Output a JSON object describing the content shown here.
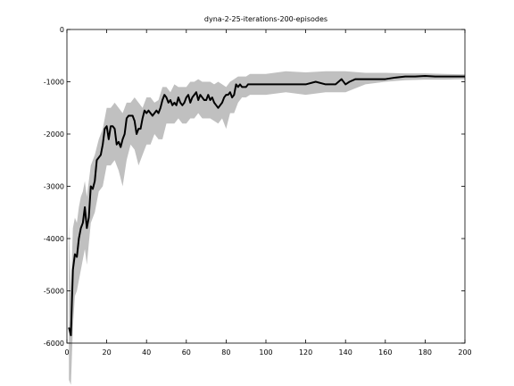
{
  "chart_data": {
    "type": "line",
    "title": "dyna-2-25-iterations-200-episodes",
    "xlabel": "",
    "ylabel": "",
    "xlim": [
      0,
      200
    ],
    "ylim": [
      -6000,
      0
    ],
    "xticks": [
      0,
      20,
      40,
      60,
      80,
      100,
      120,
      140,
      160,
      180,
      200
    ],
    "yticks": [
      0,
      -1000,
      -2000,
      -3000,
      -4000,
      -5000,
      -6000
    ],
    "xtick_labels": [
      "0",
      "20",
      "40",
      "60",
      "80",
      "100",
      "120",
      "140",
      "160",
      "180",
      "200"
    ],
    "ytick_labels": [
      "0",
      "-1000",
      "-2000",
      "-3000",
      "-4000",
      "-5000",
      "-6000"
    ],
    "grid": false,
    "series": [
      {
        "name": "",
        "color": "#000000",
        "x": [
          1,
          2,
          3,
          4,
          5,
          6,
          7,
          8,
          9,
          10,
          11,
          12,
          13,
          14,
          15,
          16,
          17,
          18,
          19,
          20,
          21,
          22,
          23,
          24,
          25,
          26,
          27,
          28,
          29,
          30,
          31,
          32,
          33,
          34,
          35,
          36,
          37,
          38,
          39,
          40,
          41,
          42,
          43,
          44,
          45,
          46,
          47,
          48,
          49,
          50,
          51,
          52,
          53,
          54,
          55,
          56,
          57,
          58,
          59,
          60,
          61,
          62,
          63,
          64,
          65,
          66,
          67,
          68,
          69,
          70,
          71,
          72,
          73,
          74,
          75,
          76,
          77,
          78,
          79,
          80,
          81,
          82,
          83,
          84,
          85,
          86,
          87,
          88,
          89,
          90,
          91,
          92,
          95,
          100,
          105,
          110,
          115,
          120,
          125,
          130,
          135,
          138,
          140,
          142,
          145,
          150,
          155,
          160,
          165,
          170,
          175,
          180,
          185,
          190,
          195,
          200
        ],
        "y": [
          -5700,
          -5850,
          -4600,
          -4300,
          -4350,
          -4000,
          -3800,
          -3700,
          -3400,
          -3800,
          -3600,
          -3000,
          -3050,
          -2900,
          -2500,
          -2450,
          -2400,
          -2200,
          -1900,
          -1850,
          -2100,
          -1850,
          -1850,
          -1900,
          -2200,
          -2150,
          -2250,
          -2100,
          -2000,
          -1700,
          -1650,
          -1650,
          -1650,
          -1750,
          -2000,
          -1900,
          -1900,
          -1700,
          -1550,
          -1600,
          -1550,
          -1600,
          -1650,
          -1600,
          -1550,
          -1600,
          -1500,
          -1350,
          -1250,
          -1300,
          -1400,
          -1350,
          -1450,
          -1400,
          -1450,
          -1300,
          -1400,
          -1450,
          -1400,
          -1300,
          -1250,
          -1400,
          -1300,
          -1250,
          -1200,
          -1350,
          -1250,
          -1300,
          -1350,
          -1350,
          -1250,
          -1350,
          -1300,
          -1400,
          -1450,
          -1500,
          -1450,
          -1400,
          -1300,
          -1250,
          -1250,
          -1200,
          -1300,
          -1250,
          -1050,
          -1100,
          -1050,
          -1100,
          -1100,
          -1100,
          -1050,
          -1050,
          -1050,
          -1050,
          -1050,
          -1050,
          -1050,
          -1050,
          -1000,
          -1050,
          -1050,
          -950,
          -1050,
          -1000,
          -950,
          -950,
          -950,
          -950,
          -920,
          -900,
          -900,
          -890,
          -900,
          -900,
          -900,
          -900
        ]
      },
      {
        "name": "",
        "color": "#c0c0c0",
        "fill": "band",
        "x": [
          1,
          2,
          3,
          4,
          5,
          6,
          7,
          8,
          9,
          10,
          12,
          14,
          16,
          18,
          20,
          22,
          24,
          26,
          28,
          30,
          32,
          34,
          36,
          38,
          40,
          42,
          44,
          46,
          48,
          50,
          52,
          54,
          56,
          58,
          60,
          62,
          64,
          66,
          68,
          70,
          72,
          74,
          76,
          78,
          80,
          82,
          84,
          86,
          88,
          90,
          92,
          95,
          100,
          110,
          120,
          130,
          140,
          150,
          160,
          170,
          180,
          190,
          200
        ],
        "upper": [
          -3700,
          -5000,
          -3800,
          -3600,
          -3700,
          -3400,
          -3200,
          -3100,
          -2900,
          -3200,
          -2600,
          -2400,
          -2100,
          -1900,
          -1500,
          -1500,
          -1400,
          -1500,
          -1600,
          -1400,
          -1400,
          -1300,
          -1400,
          -1500,
          -1300,
          -1300,
          -1400,
          -1350,
          -1100,
          -1100,
          -1200,
          -1050,
          -1100,
          -1100,
          -1100,
          -1000,
          -1000,
          -950,
          -1000,
          -1000,
          -1000,
          -1050,
          -1000,
          -1050,
          -1100,
          -1000,
          -950,
          -900,
          -900,
          -900,
          -850,
          -850,
          -850,
          -800,
          -820,
          -800,
          -800,
          -830,
          -830,
          -840,
          -840,
          -850,
          -860
        ],
        "lower": [
          -6700,
          -6800,
          -5700,
          -5100,
          -5000,
          -4800,
          -4600,
          -4400,
          -4200,
          -4500,
          -3700,
          -3500,
          -3100,
          -3000,
          -2600,
          -2600,
          -2500,
          -2700,
          -3000,
          -2500,
          -2200,
          -2300,
          -2600,
          -2400,
          -2200,
          -2200,
          -2000,
          -2100,
          -2100,
          -1800,
          -1800,
          -1800,
          -1700,
          -1800,
          -1800,
          -1700,
          -1700,
          -1600,
          -1700,
          -1700,
          -1700,
          -1750,
          -1800,
          -1700,
          -1900,
          -1600,
          -1600,
          -1400,
          -1300,
          -1300,
          -1250,
          -1250,
          -1250,
          -1200,
          -1250,
          -1200,
          -1200,
          -1050,
          -1000,
          -970,
          -960,
          -960,
          -950
        ]
      }
    ]
  }
}
